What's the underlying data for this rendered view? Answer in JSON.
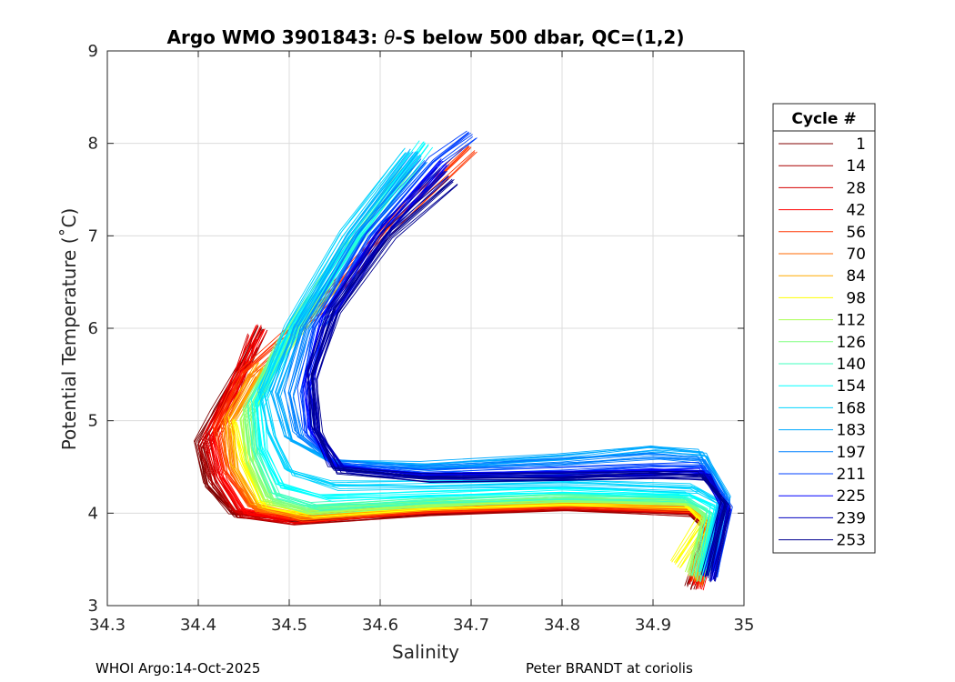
{
  "chart_data": {
    "type": "line",
    "title_prefix": "Argo WMO 3901843: ",
    "title_symbol": "θ",
    "title_suffix": "-S below 500 dbar,  QC=(1,2)",
    "xlabel": "Salinity",
    "ylabel": "Potential Temperature (˚C)",
    "xlim": [
      34.3,
      35.0
    ],
    "ylim": [
      3,
      9
    ],
    "xticks": [
      "34.3",
      "34.4",
      "34.5",
      "34.6",
      "34.7",
      "34.8",
      "34.9",
      "35"
    ],
    "yticks": [
      "3",
      "4",
      "5",
      "6",
      "7",
      "8",
      "9"
    ],
    "grid": true,
    "legend": {
      "title": "Cycle #",
      "position": "outside-right",
      "entries": [
        {
          "label": "1",
          "color": "#800000"
        },
        {
          "label": "14",
          "color": "#aa0000"
        },
        {
          "label": "28",
          "color": "#d40000"
        },
        {
          "label": "42",
          "color": "#ff0000"
        },
        {
          "label": "56",
          "color": "#ff3500"
        },
        {
          "label": "70",
          "color": "#ff6a00"
        },
        {
          "label": "84",
          "color": "#ffaa00"
        },
        {
          "label": "98",
          "color": "#ffff00"
        },
        {
          "label": "112",
          "color": "#aaff55"
        },
        {
          "label": "126",
          "color": "#80ff80"
        },
        {
          "label": "140",
          "color": "#40ffbf"
        },
        {
          "label": "154",
          "color": "#00ffff"
        },
        {
          "label": "168",
          "color": "#00d4ff"
        },
        {
          "label": "183",
          "color": "#00aaff"
        },
        {
          "label": "197",
          "color": "#0080ff"
        },
        {
          "label": "211",
          "color": "#0040ff"
        },
        {
          "label": "225",
          "color": "#0000ff"
        },
        {
          "label": "239",
          "color": "#0000c0"
        },
        {
          "label": "253",
          "color": "#000090"
        }
      ]
    },
    "series": [
      {
        "name": "1",
        "color": "#800000",
        "points": [
          [
            34.94,
            3.2
          ],
          [
            34.96,
            3.8
          ],
          [
            34.94,
            4.0
          ],
          [
            34.8,
            4.06
          ],
          [
            34.65,
            4.0
          ],
          [
            34.5,
            3.92
          ],
          [
            34.44,
            3.98
          ],
          [
            34.41,
            4.3
          ],
          [
            34.4,
            4.75
          ],
          [
            34.42,
            5.1
          ],
          [
            34.45,
            5.6
          ],
          [
            34.47,
            6.0
          ]
        ]
      },
      {
        "name": "14",
        "color": "#aa0000",
        "points": [
          [
            34.95,
            3.25
          ],
          [
            34.965,
            3.8
          ],
          [
            34.945,
            4.02
          ],
          [
            34.8,
            4.07
          ],
          [
            34.65,
            4.01
          ],
          [
            34.5,
            3.93
          ],
          [
            34.44,
            4.0
          ],
          [
            34.415,
            4.35
          ],
          [
            34.405,
            4.7
          ],
          [
            34.43,
            5.2
          ],
          [
            34.46,
            5.8
          ]
        ]
      },
      {
        "name": "28",
        "color": "#d40000",
        "points": [
          [
            34.945,
            3.22
          ],
          [
            34.96,
            3.85
          ],
          [
            34.94,
            4.03
          ],
          [
            34.8,
            4.08
          ],
          [
            34.65,
            4.02
          ],
          [
            34.5,
            3.92
          ],
          [
            34.445,
            4.0
          ],
          [
            34.42,
            4.4
          ],
          [
            34.41,
            4.8
          ],
          [
            34.44,
            5.3
          ],
          [
            34.46,
            5.9
          ]
        ]
      },
      {
        "name": "42",
        "color": "#ff0000",
        "points": [
          [
            34.95,
            3.2
          ],
          [
            34.965,
            3.85
          ],
          [
            34.94,
            4.05
          ],
          [
            34.8,
            4.09
          ],
          [
            34.65,
            4.03
          ],
          [
            34.5,
            3.94
          ],
          [
            34.45,
            4.02
          ],
          [
            34.425,
            4.4
          ],
          [
            34.415,
            4.85
          ],
          [
            34.44,
            5.4
          ],
          [
            34.47,
            6.0
          ]
        ]
      },
      {
        "name": "56",
        "color": "#ff3500",
        "points": [
          [
            34.945,
            3.25
          ],
          [
            34.96,
            3.9
          ],
          [
            34.94,
            4.06
          ],
          [
            34.8,
            4.1
          ],
          [
            34.65,
            4.04
          ],
          [
            34.51,
            3.96
          ],
          [
            34.46,
            4.05
          ],
          [
            34.43,
            4.45
          ],
          [
            34.42,
            4.9
          ],
          [
            34.45,
            5.5
          ],
          [
            34.53,
            6.2
          ],
          [
            34.62,
            7.2
          ],
          [
            34.7,
            7.95
          ]
        ]
      },
      {
        "name": "70",
        "color": "#ff6a00",
        "points": [
          [
            34.95,
            3.25
          ],
          [
            34.965,
            3.9
          ],
          [
            34.94,
            4.07
          ],
          [
            34.8,
            4.11
          ],
          [
            34.65,
            4.05
          ],
          [
            34.51,
            3.97
          ],
          [
            34.46,
            4.06
          ],
          [
            34.435,
            4.5
          ],
          [
            34.43,
            4.95
          ],
          [
            34.46,
            5.5
          ]
        ]
      },
      {
        "name": "84",
        "color": "#ffaa00",
        "points": [
          [
            34.945,
            3.3
          ],
          [
            34.96,
            3.9
          ],
          [
            34.94,
            4.08
          ],
          [
            34.8,
            4.12
          ],
          [
            34.65,
            4.06
          ],
          [
            34.51,
            3.98
          ],
          [
            34.465,
            4.08
          ],
          [
            34.44,
            4.5
          ],
          [
            34.435,
            5.0
          ],
          [
            34.47,
            5.6
          ]
        ]
      },
      {
        "name": "98",
        "color": "#ffff00",
        "points": [
          [
            34.925,
            3.45
          ],
          [
            34.955,
            3.9
          ],
          [
            34.935,
            4.1
          ],
          [
            34.8,
            4.13
          ],
          [
            34.65,
            4.07
          ],
          [
            34.52,
            4.0
          ],
          [
            34.47,
            4.1
          ],
          [
            34.45,
            4.55
          ],
          [
            34.44,
            5.0
          ]
        ]
      },
      {
        "name": "112",
        "color": "#aaff55",
        "points": [
          [
            34.94,
            3.35
          ],
          [
            34.96,
            3.95
          ],
          [
            34.935,
            4.12
          ],
          [
            34.8,
            4.15
          ],
          [
            34.65,
            4.09
          ],
          [
            34.52,
            4.02
          ],
          [
            34.475,
            4.12
          ],
          [
            34.455,
            4.55
          ],
          [
            34.45,
            5.0
          ],
          [
            34.48,
            5.6
          ],
          [
            34.55,
            6.5
          ]
        ]
      },
      {
        "name": "126",
        "color": "#80ff80",
        "points": [
          [
            34.945,
            3.3
          ],
          [
            34.96,
            3.95
          ],
          [
            34.935,
            4.14
          ],
          [
            34.8,
            4.17
          ],
          [
            34.65,
            4.11
          ],
          [
            34.52,
            4.04
          ],
          [
            34.48,
            4.15
          ],
          [
            34.46,
            4.6
          ],
          [
            34.455,
            5.1
          ],
          [
            34.49,
            5.8
          ],
          [
            34.56,
            6.8
          ],
          [
            34.63,
            7.7
          ]
        ]
      },
      {
        "name": "140",
        "color": "#40ffbf",
        "points": [
          [
            34.95,
            3.3
          ],
          [
            34.965,
            4.0
          ],
          [
            34.935,
            4.16
          ],
          [
            34.8,
            4.19
          ],
          [
            34.65,
            4.13
          ],
          [
            34.53,
            4.07
          ],
          [
            34.485,
            4.2
          ],
          [
            34.465,
            4.65
          ],
          [
            34.46,
            5.15
          ],
          [
            34.5,
            5.9
          ],
          [
            34.57,
            6.9
          ],
          [
            34.64,
            7.8
          ]
        ]
      },
      {
        "name": "154",
        "color": "#00ffff",
        "points": [
          [
            34.955,
            3.35
          ],
          [
            34.97,
            4.05
          ],
          [
            34.94,
            4.2
          ],
          [
            34.8,
            4.25
          ],
          [
            34.65,
            4.2
          ],
          [
            34.54,
            4.17
          ],
          [
            34.49,
            4.3
          ],
          [
            34.47,
            4.7
          ],
          [
            34.465,
            5.2
          ],
          [
            34.5,
            5.9
          ],
          [
            34.56,
            6.8
          ],
          [
            34.65,
            8.0
          ]
        ]
      },
      {
        "name": "168",
        "color": "#00d4ff",
        "points": [
          [
            34.96,
            3.4
          ],
          [
            34.975,
            4.1
          ],
          [
            34.945,
            4.27
          ],
          [
            34.8,
            4.33
          ],
          [
            34.65,
            4.3
          ],
          [
            34.55,
            4.3
          ],
          [
            34.5,
            4.45
          ],
          [
            34.48,
            4.85
          ],
          [
            34.47,
            5.3
          ],
          [
            34.5,
            6.0
          ],
          [
            34.56,
            7.0
          ],
          [
            34.63,
            7.9
          ]
        ]
      },
      {
        "name": "183",
        "color": "#00aaff",
        "points": [
          [
            34.965,
            3.45
          ],
          [
            34.98,
            4.2
          ],
          [
            34.955,
            4.65
          ],
          [
            34.9,
            4.7
          ],
          [
            34.8,
            4.6
          ],
          [
            34.65,
            4.52
          ],
          [
            34.55,
            4.55
          ],
          [
            34.5,
            4.8
          ],
          [
            34.485,
            5.3
          ],
          [
            34.51,
            6.0
          ],
          [
            34.57,
            7.0
          ],
          [
            34.64,
            7.9
          ]
        ]
      },
      {
        "name": "197",
        "color": "#0080ff",
        "points": [
          [
            34.965,
            3.4
          ],
          [
            34.98,
            4.15
          ],
          [
            34.955,
            4.58
          ],
          [
            34.9,
            4.62
          ],
          [
            34.8,
            4.55
          ],
          [
            34.65,
            4.48
          ],
          [
            34.55,
            4.55
          ],
          [
            34.51,
            4.85
          ],
          [
            34.5,
            5.3
          ],
          [
            34.52,
            6.0
          ],
          [
            34.58,
            7.0
          ],
          [
            34.65,
            7.8
          ]
        ]
      },
      {
        "name": "211",
        "color": "#0040ff",
        "points": [
          [
            34.965,
            3.35
          ],
          [
            34.98,
            4.1
          ],
          [
            34.955,
            4.5
          ],
          [
            34.9,
            4.5
          ],
          [
            34.8,
            4.45
          ],
          [
            34.65,
            4.42
          ],
          [
            34.55,
            4.52
          ],
          [
            34.52,
            4.85
          ],
          [
            34.515,
            5.3
          ],
          [
            34.53,
            6.0
          ],
          [
            34.59,
            7.0
          ],
          [
            34.66,
            7.8
          ],
          [
            34.7,
            8.1
          ]
        ]
      },
      {
        "name": "225",
        "color": "#0000ff",
        "points": [
          [
            34.96,
            3.3
          ],
          [
            34.98,
            4.05
          ],
          [
            34.955,
            4.45
          ],
          [
            34.9,
            4.45
          ],
          [
            34.8,
            4.42
          ],
          [
            34.65,
            4.4
          ],
          [
            34.55,
            4.5
          ],
          [
            34.525,
            4.9
          ],
          [
            34.52,
            5.4
          ],
          [
            34.54,
            6.1
          ],
          [
            34.6,
            7.0
          ],
          [
            34.67,
            7.8
          ]
        ]
      },
      {
        "name": "239",
        "color": "#0000c0",
        "points": [
          [
            34.965,
            3.3
          ],
          [
            34.98,
            4.05
          ],
          [
            34.96,
            4.42
          ],
          [
            34.9,
            4.42
          ],
          [
            34.8,
            4.4
          ],
          [
            34.65,
            4.39
          ],
          [
            34.56,
            4.48
          ],
          [
            34.53,
            4.9
          ],
          [
            34.525,
            5.5
          ],
          [
            34.55,
            6.2
          ],
          [
            34.61,
            7.1
          ],
          [
            34.67,
            7.7
          ]
        ]
      },
      {
        "name": "253",
        "color": "#000090",
        "points": [
          [
            34.96,
            3.3
          ],
          [
            34.98,
            4.1
          ],
          [
            34.955,
            4.4
          ],
          [
            34.9,
            4.42
          ],
          [
            34.8,
            4.38
          ],
          [
            34.65,
            4.38
          ],
          [
            34.55,
            4.47
          ],
          [
            34.53,
            4.9
          ],
          [
            34.525,
            5.5
          ],
          [
            34.55,
            6.2
          ],
          [
            34.61,
            7.0
          ],
          [
            34.68,
            7.6
          ]
        ]
      }
    ]
  },
  "footer": {
    "left": "WHOI Argo:14-Oct-2025",
    "right": "Peter BRANDT at coriolis"
  }
}
